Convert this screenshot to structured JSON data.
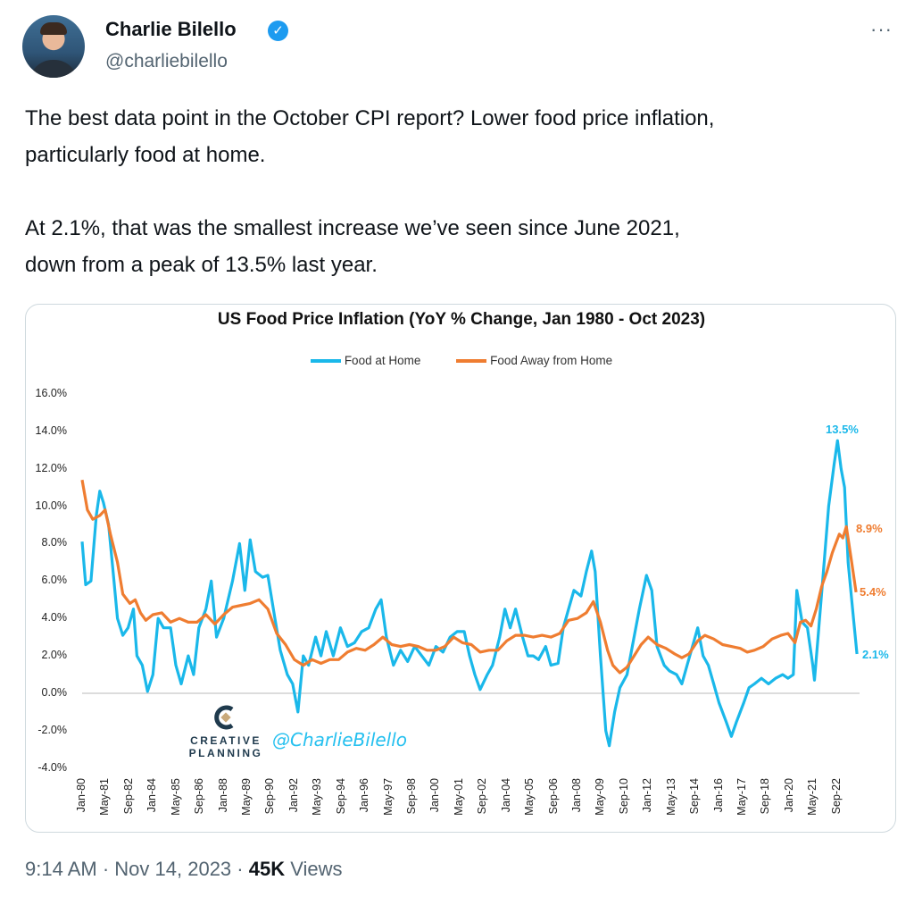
{
  "tweet": {
    "author_name": "Charlie Bilello",
    "handle": "@charliebilello",
    "verified_icon": "check",
    "more_icon": "···",
    "paragraphs": [
      [
        "The best data point in the October CPI report? Lower food price inflation,",
        "particularly food at home."
      ],
      [
        "At 2.1%, that was the smallest increase we’ve seen since June 2021,",
        "down from a peak of 13.5% last year."
      ]
    ],
    "time": "9:14 AM",
    "date": "Nov 14, 2023",
    "views_count": "45K",
    "views_label": "Views",
    "sep": "·"
  },
  "chart_data": {
    "type": "line",
    "title": "US Food Price  Inflation (YoY % Change, Jan 1980 - Oct 2023)",
    "xlabel": "",
    "ylabel": "",
    "ylim": [
      -4,
      16
    ],
    "yticks": [
      "16.0%",
      "14.0%",
      "12.0%",
      "10.0%",
      "8.0%",
      "6.0%",
      "4.0%",
      "2.0%",
      "0.0%",
      "-2.0%",
      "-4.0%"
    ],
    "xticks": [
      "Jan-80",
      "May-81",
      "Sep-82",
      "Jan-84",
      "May-85",
      "Sep-86",
      "Jan-88",
      "May-89",
      "Sep-90",
      "Jan-92",
      "May-93",
      "Sep-94",
      "Jan-96",
      "May-97",
      "Sep-98",
      "Jan-00",
      "May-01",
      "Sep-02",
      "Jan-04",
      "May-05",
      "Sep-06",
      "Jan-08",
      "May-09",
      "Sep-10",
      "Jan-12",
      "May-13",
      "Sep-14",
      "Jan-16",
      "May-17",
      "Sep-18",
      "Jan-20",
      "May-21",
      "Sep-22"
    ],
    "legend_position": "top",
    "zero_line": true,
    "series": [
      {
        "name": "Food at Home",
        "color": "#1ab8ea",
        "end_label": "2.1%",
        "peak_label": "13.5%",
        "points": [
          [
            1980.0,
            8.1
          ],
          [
            1980.2,
            5.8
          ],
          [
            1980.5,
            6.0
          ],
          [
            1980.8,
            9.5
          ],
          [
            1981.0,
            10.8
          ],
          [
            1981.2,
            10.2
          ],
          [
            1981.5,
            9.0
          ],
          [
            1981.8,
            6
          ],
          [
            1982.0,
            4
          ],
          [
            1982.3,
            3.1
          ],
          [
            1982.6,
            3.5
          ],
          [
            1982.9,
            4.5
          ],
          [
            1983.1,
            2
          ],
          [
            1983.4,
            1.5
          ],
          [
            1983.7,
            0.1
          ],
          [
            1984.0,
            1
          ],
          [
            1984.3,
            4
          ],
          [
            1984.6,
            3.5
          ],
          [
            1985.0,
            3.5
          ],
          [
            1985.3,
            1.5
          ],
          [
            1985.6,
            0.5
          ],
          [
            1986.0,
            2
          ],
          [
            1986.3,
            1
          ],
          [
            1986.6,
            3.5
          ],
          [
            1987.0,
            4.5
          ],
          [
            1987.3,
            6
          ],
          [
            1987.6,
            3
          ],
          [
            1988.0,
            4
          ],
          [
            1988.5,
            6
          ],
          [
            1988.9,
            8
          ],
          [
            1989.2,
            5.5
          ],
          [
            1989.5,
            8.2
          ],
          [
            1989.8,
            6.5
          ],
          [
            1990.2,
            6.2
          ],
          [
            1990.5,
            6.3
          ],
          [
            1990.9,
            4
          ],
          [
            1991.2,
            2.3
          ],
          [
            1991.6,
            1
          ],
          [
            1991.9,
            0.5
          ],
          [
            1992.2,
            -1
          ],
          [
            1992.5,
            2
          ],
          [
            1992.8,
            1.5
          ],
          [
            1993.2,
            3
          ],
          [
            1993.5,
            2
          ],
          [
            1993.8,
            3.3
          ],
          [
            1994.2,
            2
          ],
          [
            1994.6,
            3.5
          ],
          [
            1995.0,
            2.5
          ],
          [
            1995.4,
            2.7
          ],
          [
            1995.8,
            3.3
          ],
          [
            1996.2,
            3.5
          ],
          [
            1996.6,
            4.5
          ],
          [
            1996.9,
            5
          ],
          [
            1997.2,
            3
          ],
          [
            1997.6,
            1.5
          ],
          [
            1998.0,
            2.3
          ],
          [
            1998.4,
            1.7
          ],
          [
            1998.8,
            2.5
          ],
          [
            1999.2,
            2
          ],
          [
            1999.6,
            1.5
          ],
          [
            2000.0,
            2.5
          ],
          [
            2000.4,
            2.2
          ],
          [
            2000.8,
            3
          ],
          [
            2001.2,
            3.3
          ],
          [
            2001.6,
            3.3
          ],
          [
            2001.9,
            2
          ],
          [
            2002.2,
            1
          ],
          [
            2002.5,
            0.2
          ],
          [
            2002.9,
            1
          ],
          [
            2003.2,
            1.5
          ],
          [
            2003.6,
            3
          ],
          [
            2003.9,
            4.5
          ],
          [
            2004.2,
            3.5
          ],
          [
            2004.5,
            4.5
          ],
          [
            2004.9,
            3
          ],
          [
            2005.2,
            2
          ],
          [
            2005.5,
            2
          ],
          [
            2005.8,
            1.8
          ],
          [
            2006.2,
            2.5
          ],
          [
            2006.5,
            1.5
          ],
          [
            2006.9,
            1.6
          ],
          [
            2007.2,
            3.5
          ],
          [
            2007.5,
            4.5
          ],
          [
            2007.8,
            5.5
          ],
          [
            2008.2,
            5.2
          ],
          [
            2008.5,
            6.5
          ],
          [
            2008.8,
            7.6
          ],
          [
            2009.0,
            6.5
          ],
          [
            2009.3,
            2
          ],
          [
            2009.6,
            -2
          ],
          [
            2009.8,
            -2.8
          ],
          [
            2010.1,
            -1
          ],
          [
            2010.4,
            0.3
          ],
          [
            2010.8,
            1
          ],
          [
            2011.1,
            2.5
          ],
          [
            2011.5,
            4.5
          ],
          [
            2011.9,
            6.3
          ],
          [
            2012.2,
            5.5
          ],
          [
            2012.5,
            2.5
          ],
          [
            2012.9,
            1.5
          ],
          [
            2013.2,
            1.2
          ],
          [
            2013.6,
            1
          ],
          [
            2013.9,
            0.5
          ],
          [
            2014.2,
            1.5
          ],
          [
            2014.5,
            2.5
          ],
          [
            2014.8,
            3.5
          ],
          [
            2015.1,
            2
          ],
          [
            2015.4,
            1.5
          ],
          [
            2015.7,
            0.5
          ],
          [
            2016.0,
            -0.5
          ],
          [
            2016.4,
            -1.5
          ],
          [
            2016.7,
            -2.3
          ],
          [
            2017.0,
            -1.5
          ],
          [
            2017.4,
            -0.5
          ],
          [
            2017.7,
            0.3
          ],
          [
            2018.0,
            0.5
          ],
          [
            2018.4,
            0.8
          ],
          [
            2018.8,
            0.5
          ],
          [
            2019.2,
            0.8
          ],
          [
            2019.6,
            1
          ],
          [
            2019.9,
            0.8
          ],
          [
            2020.2,
            1
          ],
          [
            2020.4,
            5.5
          ],
          [
            2020.7,
            3.8
          ],
          [
            2021.0,
            3.5
          ],
          [
            2021.3,
            1.5
          ],
          [
            2021.4,
            0.7
          ],
          [
            2021.6,
            3
          ],
          [
            2021.9,
            6.5
          ],
          [
            2022.2,
            10
          ],
          [
            2022.5,
            12.2
          ],
          [
            2022.7,
            13.5
          ],
          [
            2022.9,
            12
          ],
          [
            2023.1,
            11
          ],
          [
            2023.3,
            7
          ],
          [
            2023.6,
            4
          ],
          [
            2023.8,
            2.1
          ]
        ]
      },
      {
        "name": "Food Away from Home",
        "color": "#ef7d31",
        "end_label": "5.4%",
        "peak_label": "8.9%",
        "points": [
          [
            1980.0,
            11.4
          ],
          [
            1980.3,
            9.8
          ],
          [
            1980.6,
            9.3
          ],
          [
            1981.0,
            9.5
          ],
          [
            1981.3,
            9.8
          ],
          [
            1981.6,
            8.5
          ],
          [
            1982.0,
            7
          ],
          [
            1982.3,
            5.3
          ],
          [
            1982.7,
            4.8
          ],
          [
            1983.0,
            5
          ],
          [
            1983.3,
            4.3
          ],
          [
            1983.6,
            3.9
          ],
          [
            1984.0,
            4.2
          ],
          [
            1984.5,
            4.3
          ],
          [
            1985.0,
            3.8
          ],
          [
            1985.5,
            4.0
          ],
          [
            1986.0,
            3.8
          ],
          [
            1986.5,
            3.8
          ],
          [
            1987.0,
            4.2
          ],
          [
            1987.5,
            3.7
          ],
          [
            1988.0,
            4.2
          ],
          [
            1988.5,
            4.6
          ],
          [
            1989.0,
            4.7
          ],
          [
            1989.5,
            4.8
          ],
          [
            1990.0,
            5.0
          ],
          [
            1990.5,
            4.5
          ],
          [
            1991.0,
            3.2
          ],
          [
            1991.5,
            2.6
          ],
          [
            1992.0,
            1.8
          ],
          [
            1992.5,
            1.5
          ],
          [
            1993.0,
            1.8
          ],
          [
            1993.5,
            1.6
          ],
          [
            1994.0,
            1.8
          ],
          [
            1994.5,
            1.8
          ],
          [
            1995.0,
            2.2
          ],
          [
            1995.5,
            2.4
          ],
          [
            1996.0,
            2.3
          ],
          [
            1996.5,
            2.6
          ],
          [
            1997.0,
            3.0
          ],
          [
            1997.5,
            2.6
          ],
          [
            1998.0,
            2.5
          ],
          [
            1998.5,
            2.6
          ],
          [
            1999.0,
            2.5
          ],
          [
            1999.5,
            2.3
          ],
          [
            2000.0,
            2.3
          ],
          [
            2000.5,
            2.5
          ],
          [
            2001.0,
            3.0
          ],
          [
            2001.5,
            2.7
          ],
          [
            2002.0,
            2.6
          ],
          [
            2002.5,
            2.2
          ],
          [
            2003.0,
            2.3
          ],
          [
            2003.5,
            2.3
          ],
          [
            2004.0,
            2.8
          ],
          [
            2004.5,
            3.1
          ],
          [
            2005.0,
            3.1
          ],
          [
            2005.5,
            3.0
          ],
          [
            2006.0,
            3.1
          ],
          [
            2006.5,
            3.0
          ],
          [
            2007.0,
            3.2
          ],
          [
            2007.5,
            3.9
          ],
          [
            2008.0,
            4.0
          ],
          [
            2008.5,
            4.3
          ],
          [
            2008.9,
            4.9
          ],
          [
            2009.3,
            3.8
          ],
          [
            2009.7,
            2.3
          ],
          [
            2010.0,
            1.5
          ],
          [
            2010.4,
            1.1
          ],
          [
            2010.8,
            1.4
          ],
          [
            2011.2,
            2.0
          ],
          [
            2011.6,
            2.6
          ],
          [
            2012.0,
            3.0
          ],
          [
            2012.5,
            2.6
          ],
          [
            2013.0,
            2.4
          ],
          [
            2013.5,
            2.1
          ],
          [
            2013.9,
            1.9
          ],
          [
            2014.3,
            2.1
          ],
          [
            2014.8,
            2.8
          ],
          [
            2015.2,
            3.1
          ],
          [
            2015.7,
            2.9
          ],
          [
            2016.2,
            2.6
          ],
          [
            2016.7,
            2.5
          ],
          [
            2017.2,
            2.4
          ],
          [
            2017.6,
            2.2
          ],
          [
            2018.0,
            2.3
          ],
          [
            2018.5,
            2.5
          ],
          [
            2019.0,
            2.9
          ],
          [
            2019.5,
            3.1
          ],
          [
            2019.9,
            3.2
          ],
          [
            2020.3,
            2.7
          ],
          [
            2020.6,
            3.8
          ],
          [
            2020.9,
            3.9
          ],
          [
            2021.2,
            3.6
          ],
          [
            2021.5,
            4.5
          ],
          [
            2021.8,
            5.7
          ],
          [
            2022.1,
            6.5
          ],
          [
            2022.4,
            7.5
          ],
          [
            2022.6,
            8.0
          ],
          [
            2022.8,
            8.5
          ],
          [
            2023.0,
            8.3
          ],
          [
            2023.2,
            8.9
          ],
          [
            2023.5,
            7.0
          ],
          [
            2023.75,
            5.4
          ]
        ]
      }
    ],
    "logo_text": [
      "CREATIVE",
      "PLANNING"
    ],
    "watermark": "@CharlieBilello"
  }
}
